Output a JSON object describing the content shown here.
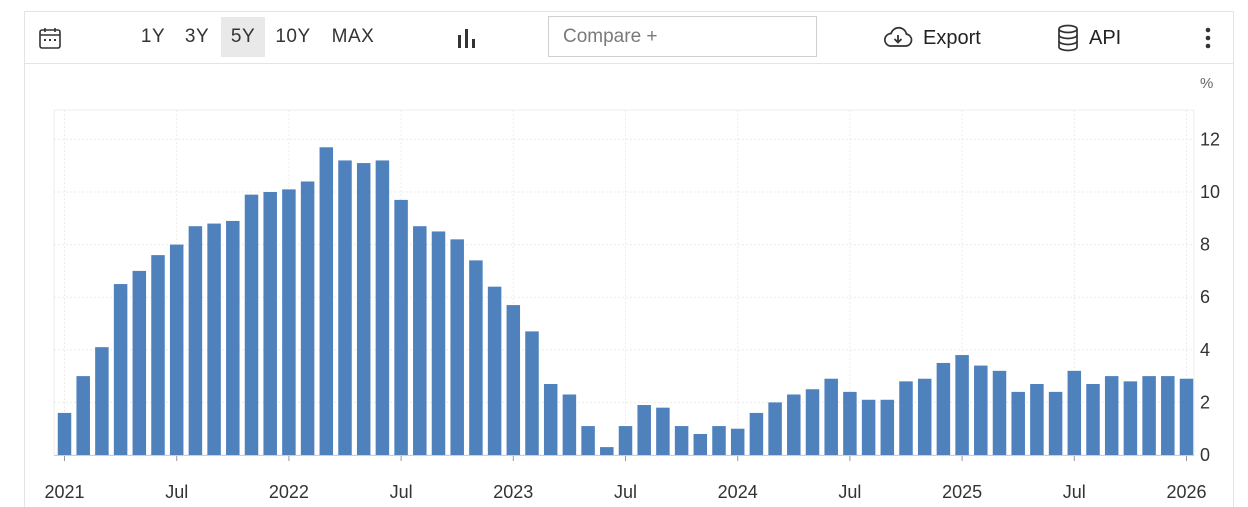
{
  "toolbar": {
    "calendar_icon": "calendar-icon",
    "ranges": [
      "1Y",
      "3Y",
      "5Y",
      "10Y",
      "MAX"
    ],
    "active_range": "5Y",
    "chart_type_icon": "bar-chart-icon",
    "compare_placeholder": "Compare +",
    "export_label": "Export",
    "export_icon": "cloud-download-icon",
    "api_label": "API",
    "api_icon": "database-icon",
    "more_icon": "vertical-dots-icon"
  },
  "chart_data": {
    "type": "bar",
    "unit_label": "%",
    "bar_color": "#4f81bd",
    "x_start": "2021-01",
    "x_tick_labels": [
      "2021",
      "Jul",
      "2022",
      "Jul",
      "2023",
      "Jul",
      "2024",
      "Jul",
      "2025",
      "Jul",
      "2026"
    ],
    "y_ticks": [
      0,
      2,
      4,
      6,
      8,
      10,
      12
    ],
    "ylim": [
      0,
      13
    ],
    "grid": true,
    "y_axis_side": "right",
    "categories": [
      "2021-01",
      "2021-02",
      "2021-03",
      "2021-04",
      "2021-05",
      "2021-06",
      "2021-07",
      "2021-08",
      "2021-09",
      "2021-10",
      "2021-11",
      "2021-12",
      "2022-01",
      "2022-02",
      "2022-03",
      "2022-04",
      "2022-05",
      "2022-06",
      "2022-07",
      "2022-08",
      "2022-09",
      "2022-10",
      "2022-11",
      "2022-12",
      "2023-01",
      "2023-02",
      "2023-03",
      "2023-04",
      "2023-05",
      "2023-06",
      "2023-07",
      "2023-08",
      "2023-09",
      "2023-10",
      "2023-11",
      "2023-12",
      "2024-01",
      "2024-02",
      "2024-03",
      "2024-04",
      "2024-05",
      "2024-06",
      "2024-07",
      "2024-08",
      "2024-09",
      "2024-10",
      "2024-11",
      "2024-12",
      "2025-01",
      "2025-02",
      "2025-03",
      "2025-04",
      "2025-05",
      "2025-06",
      "2025-07",
      "2025-08",
      "2025-09",
      "2025-10",
      "2025-11",
      "2025-12",
      "2026-01"
    ],
    "values": [
      1.6,
      3.0,
      4.1,
      6.5,
      7.0,
      7.6,
      8.0,
      8.7,
      8.8,
      8.9,
      9.9,
      10.0,
      10.1,
      10.4,
      11.7,
      11.2,
      11.1,
      11.2,
      9.7,
      8.7,
      8.5,
      8.2,
      7.4,
      6.4,
      5.7,
      4.7,
      2.7,
      2.3,
      1.1,
      0.3,
      1.1,
      1.9,
      1.8,
      1.1,
      0.8,
      1.1,
      1.0,
      1.6,
      2.0,
      2.3,
      2.5,
      2.9,
      2.4,
      2.1,
      2.1,
      2.8,
      2.9,
      3.5,
      3.8,
      3.4,
      3.2,
      2.4,
      2.7,
      2.4,
      3.2,
      2.7,
      3.0,
      2.8,
      3.0,
      3.0,
      2.9
    ]
  }
}
